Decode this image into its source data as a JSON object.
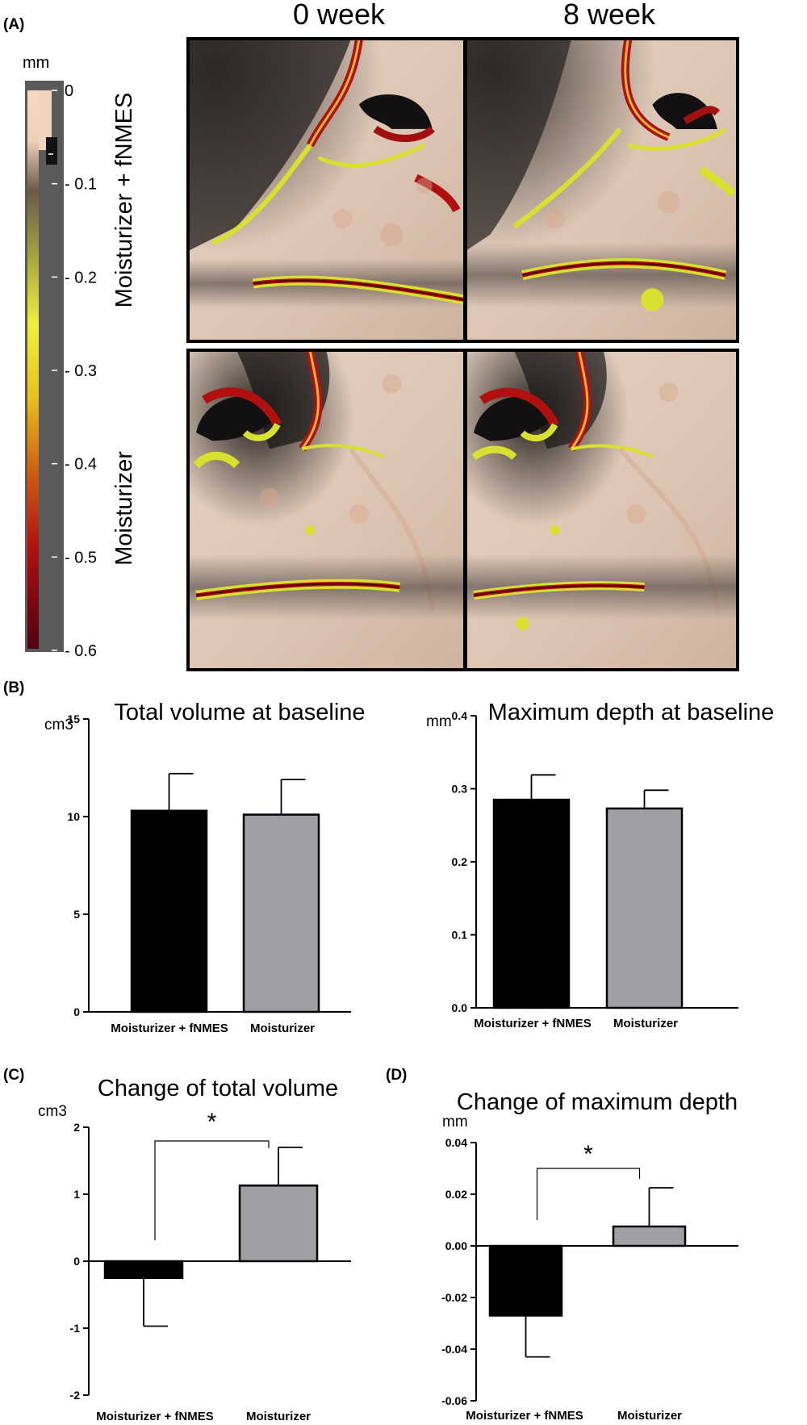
{
  "panel_labels": {
    "a": "(A)",
    "b": "(B)",
    "c": "(C)",
    "d": "(D)"
  },
  "panel_a": {
    "columns": [
      "0 week",
      "8 week"
    ],
    "rows": [
      "Moisturizer + fNMES",
      "Moisturizer"
    ],
    "colorbar": {
      "unit": "mm",
      "ticks": [
        "0",
        "- 0.1",
        "- 0.2",
        "- 0.3",
        "- 0.4",
        "- 0.5",
        "- 0.6"
      ]
    },
    "colors": {
      "skin": "#d9c2b1",
      "shadow": "#3a3330",
      "yellow": "#d8e030",
      "red": "#b01010",
      "dark_red": "#5a0008"
    }
  },
  "chart_data": [
    {
      "id": "B1",
      "type": "bar",
      "title": "Total volume at baseline",
      "ylabel": "cm3",
      "categories": [
        "Moisturizer + fNMES",
        "Moisturizer"
      ],
      "values": [
        10.3,
        10.1
      ],
      "errors": [
        1.9,
        1.8
      ],
      "ylim": [
        0,
        15
      ],
      "yticks": [
        0,
        5,
        10,
        15
      ],
      "ytick_labels": [
        "0",
        "5",
        "10",
        "15"
      ],
      "colors": [
        "#000000",
        "#a0a0a4"
      ]
    },
    {
      "id": "B2",
      "type": "bar",
      "title": "Maximum depth at baseline",
      "ylabel": "mm",
      "categories": [
        "Moisturizer + fNMES",
        "Moisturizer"
      ],
      "values": [
        0.285,
        0.273
      ],
      "errors": [
        0.034,
        0.025
      ],
      "ylim": [
        0,
        0.4
      ],
      "yticks": [
        0,
        0.1,
        0.2,
        0.3,
        0.4
      ],
      "ytick_labels": [
        "0.0",
        "0.1",
        "0.2",
        "0.3",
        "0.4"
      ],
      "colors": [
        "#000000",
        "#a0a0a4"
      ]
    },
    {
      "id": "C",
      "type": "bar",
      "title": "Change of total volume",
      "ylabel": "cm3",
      "categories": [
        "Moisturizer + fNMES",
        "Moisturizer"
      ],
      "values": [
        -0.25,
        1.13
      ],
      "errors": [
        0.72,
        0.57
      ],
      "ylim": [
        -2,
        2
      ],
      "yticks": [
        -2,
        -1,
        0,
        1,
        2
      ],
      "ytick_labels": [
        "-2",
        "-1",
        "0",
        "1",
        "2"
      ],
      "significance": "*",
      "colors": [
        "#000000",
        "#a0a0a4"
      ]
    },
    {
      "id": "D",
      "type": "bar",
      "title": "Change of maximum depth",
      "ylabel": "mm",
      "categories": [
        "Moisturizer + fNMES",
        "Moisturizer"
      ],
      "values": [
        -0.027,
        0.0075
      ],
      "errors": [
        0.016,
        0.015
      ],
      "ylim": [
        -0.06,
        0.04
      ],
      "yticks": [
        -0.06,
        -0.04,
        -0.02,
        0,
        0.02,
        0.04
      ],
      "ytick_labels": [
        "-0.06",
        "-0.04",
        "-0.02",
        "0.00",
        "0.02",
        "0.04"
      ],
      "significance": "*",
      "colors": [
        "#000000",
        "#a0a0a4"
      ]
    }
  ]
}
